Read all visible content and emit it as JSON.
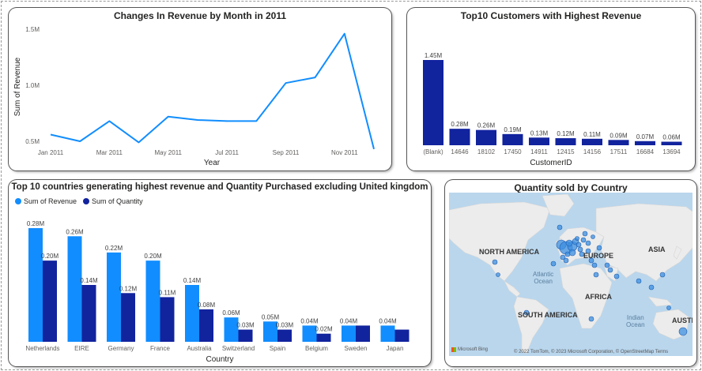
{
  "colors": {
    "accent_light": "#118dff",
    "accent_dark": "#12239e",
    "bar_navy": "#12239e"
  },
  "line_chart": {
    "title": "Changes In Revenue by Month in 2011",
    "xlabel": "Year",
    "ylabel": "Sum of Revenue",
    "y_ticks": [
      "1.5M",
      "1.0M",
      "0.5M"
    ],
    "x_ticks": [
      "Jan 2011",
      "Mar 2011",
      "May 2011",
      "Jul 2011",
      "Sep 2011",
      "Nov 2011"
    ]
  },
  "customers_chart": {
    "title": "Top10 Customers with Highest Revenue",
    "xlabel": "CustomerID",
    "data_labels": [
      "1.45M",
      "0.28M",
      "0.26M",
      "0.19M",
      "0.13M",
      "0.12M",
      "0.11M",
      "0.09M",
      "0.07M",
      "0.06M"
    ]
  },
  "countries_chart": {
    "title": "Top 10 countries generating highest revenue and Quantity Purchased excluding United kingdom",
    "xlabel": "Country",
    "legend": [
      "Sum of Revenue",
      "Sum of Quantity"
    ],
    "revenue_labels": [
      "0.28M",
      "0.26M",
      "0.22M",
      "0.20M",
      "0.14M",
      "0.06M",
      "0.05M",
      "0.04M",
      "0.04M",
      "0.04M"
    ],
    "quantity_labels": [
      "0.20M",
      "0.14M",
      "0.12M",
      "0.11M",
      "0.08M",
      "0.03M",
      "0.03M",
      "0.02M",
      "",
      ""
    ]
  },
  "map": {
    "title": "Quantity sold by Country",
    "labels": [
      "NORTH AMERICA",
      "EUROPE",
      "ASIA",
      "AFRICA",
      "SOUTH AMERICA",
      "AUSTR"
    ],
    "oceans": [
      "Atlantic",
      "Ocean",
      "Indian",
      "Ocean"
    ],
    "bing_logo": "Microsoft Bing",
    "attribution": "© 2022 TomTom, © 2023 Microsoft Corporation, © OpenStreetMap  Terms"
  },
  "chart_data": [
    {
      "type": "line",
      "title": "Changes In Revenue by Month in 2011",
      "xlabel": "Year",
      "ylabel": "Sum of Revenue",
      "x": [
        "Jan 2011",
        "Feb 2011",
        "Mar 2011",
        "Apr 2011",
        "May 2011",
        "Jun 2011",
        "Jul 2011",
        "Aug 2011",
        "Sep 2011",
        "Oct 2011",
        "Nov 2011",
        "Dec 2011"
      ],
      "values": [
        0.56,
        0.5,
        0.68,
        0.49,
        0.72,
        0.69,
        0.68,
        0.68,
        1.02,
        1.07,
        1.46,
        0.43
      ],
      "units": "M",
      "ylim": [
        0.38,
        1.62
      ],
      "grid": false
    },
    {
      "type": "bar",
      "title": "Top10 Customers with Highest Revenue",
      "xlabel": "CustomerID",
      "categories": [
        "(Blank)",
        "14646",
        "18102",
        "17450",
        "14911",
        "12415",
        "14156",
        "17511",
        "16684",
        "13694"
      ],
      "values": [
        1.45,
        0.28,
        0.26,
        0.19,
        0.13,
        0.12,
        0.11,
        0.09,
        0.07,
        0.06
      ],
      "units": "M",
      "ylim": [
        0,
        1.45
      ]
    },
    {
      "type": "bar",
      "title": "Top 10 countries generating highest revenue and Quantity Purchased excluding United kingdom",
      "xlabel": "Country",
      "categories": [
        "Netherlands",
        "EIRE",
        "Germany",
        "France",
        "Australia",
        "Switzerland",
        "Spain",
        "Belgium",
        "Sweden",
        "Japan"
      ],
      "series": [
        {
          "name": "Sum of Revenue",
          "values": [
            0.28,
            0.26,
            0.22,
            0.2,
            0.14,
            0.06,
            0.05,
            0.04,
            0.04,
            0.04
          ]
        },
        {
          "name": "Sum of Quantity",
          "values": [
            0.2,
            0.14,
            0.12,
            0.11,
            0.08,
            0.03,
            0.03,
            0.02,
            0.04,
            0.03
          ]
        }
      ],
      "units": "M",
      "ylim": [
        0,
        0.28
      ],
      "legend": "top-left"
    }
  ]
}
